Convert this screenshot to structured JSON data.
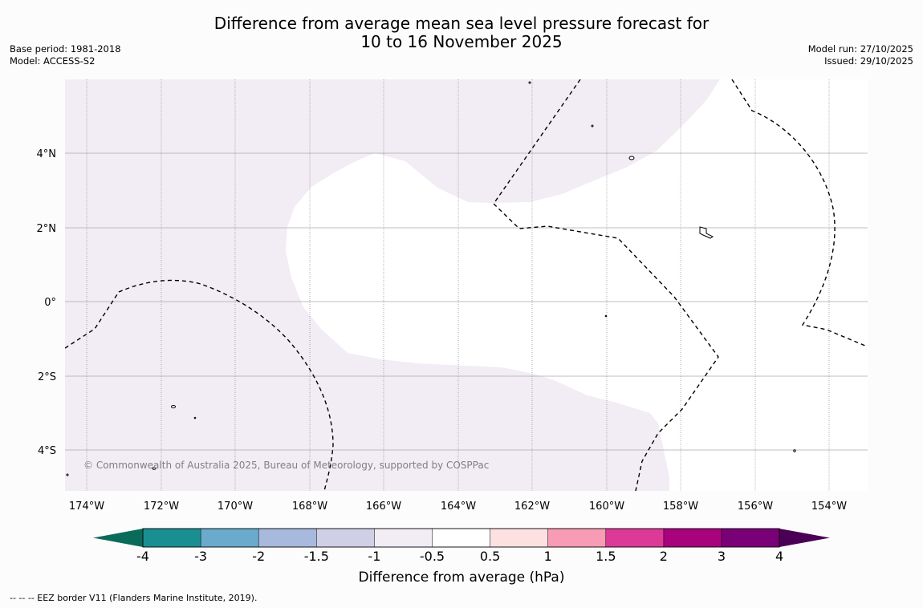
{
  "title_line1": "Difference from average mean sea level pressure forecast for",
  "title_line2": "10 to 16 November 2025",
  "meta_left": {
    "base_period": "Base period: 1981-2018",
    "model": "Model: ACCESS-S2"
  },
  "meta_right": {
    "model_run": "Model run: 27/10/2025",
    "issued": "Issued: 29/10/2025"
  },
  "map": {
    "lon_labels": [
      "174°W",
      "172°W",
      "170°W",
      "168°W",
      "166°W",
      "164°W",
      "162°W",
      "160°W",
      "158°W",
      "156°W",
      "154°W"
    ],
    "lat_labels": [
      "4°N",
      "2°N",
      "0°",
      "2°S",
      "4°S"
    ],
    "copyright": "© Commonwealth of Australia 2025, Bureau of Meteorology, supported by COSPPac",
    "colors": {
      "background_anomaly": "#f2ecf5",
      "neutral": "#ffffff",
      "grid": "#aaaaaa"
    }
  },
  "colorbar": {
    "label": "Difference from average (hPa)",
    "tick_labels": [
      "-4",
      "-3",
      "-2",
      "-1.5",
      "-1",
      "-0.5",
      "0.5",
      "1",
      "1.5",
      "2",
      "3",
      "4"
    ],
    "colors": [
      "#1a8f91",
      "#69aacd",
      "#a7b9dc",
      "#cfcfe6",
      "#f2ecf5",
      "#ffffff",
      "#fde0e0",
      "#f89bb4",
      "#dd3a97",
      "#a8037c",
      "#7a0077"
    ],
    "under_color": "#0b6b5b",
    "over_color": "#4a0055"
  },
  "footnote": "--  --  -- EEZ border V11 (Flanders Marine Institute, 2019)."
}
